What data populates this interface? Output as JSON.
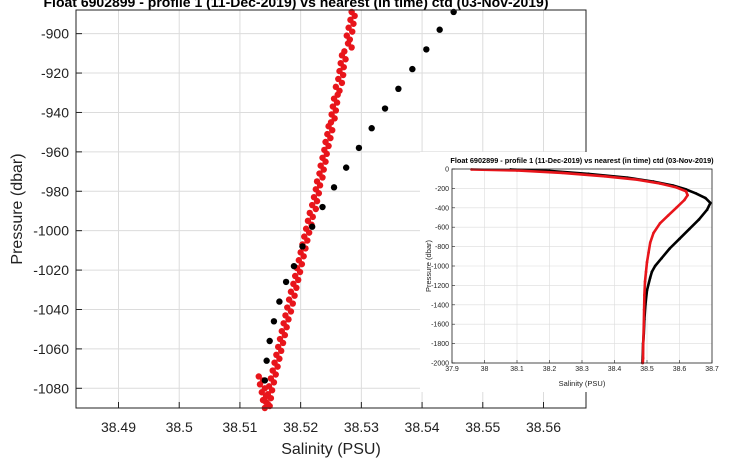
{
  "chart_data": [
    {
      "type": "scatter",
      "title": "Float 6902899 - profile 1 (11-Dec-2019) vs nearest (in time) ctd (03-Nov-2019)",
      "xlabel": "Salinity (PSU)",
      "ylabel": "Pressure (dbar)",
      "xlim": [
        38.483,
        38.567
      ],
      "ylim": [
        -1090,
        -888
      ],
      "xticks": [
        "38.49",
        "38.5",
        "38.51",
        "38.52",
        "38.53",
        "38.54",
        "38.55",
        "38.56"
      ],
      "xtick_values": [
        38.49,
        38.5,
        38.51,
        38.52,
        38.53,
        38.54,
        38.55,
        38.56
      ],
      "yticks": [
        "-900",
        "-920",
        "-940",
        "-960",
        "-980",
        "-1000",
        "-1020",
        "-1040",
        "-1060",
        "-1080"
      ],
      "ytick_values": [
        -900,
        -920,
        -940,
        -960,
        -980,
        -1000,
        -1020,
        -1040,
        -1060,
        -1080
      ],
      "grid": true,
      "series": [
        {
          "color": "#e8151b",
          "x": [
            38.5284,
            38.5289,
            38.5282,
            38.5287,
            38.5279,
            38.5285,
            38.5276,
            38.5281,
            38.5278,
            38.5284,
            38.5272,
            38.5268,
            38.5274,
            38.5266,
            38.5271,
            38.5264,
            38.527,
            38.5262,
            38.5268,
            38.5258,
            38.5264,
            38.5261,
            38.5255,
            38.526,
            38.5253,
            38.5258,
            38.5251,
            38.5256,
            38.525,
            38.5246,
            38.5252,
            38.5244,
            38.5249,
            38.5241,
            38.5246,
            38.5239,
            38.5243,
            38.5236,
            38.5241,
            38.5233,
            38.5238,
            38.5231,
            38.5236,
            38.5227,
            38.5232,
            38.5225,
            38.523,
            38.5222,
            38.5227,
            38.5219,
            38.5225,
            38.5215,
            38.522,
            38.5212,
            38.5218,
            38.5209,
            38.5214,
            38.5206,
            38.5211,
            38.5203,
            38.5208,
            38.52,
            38.5205,
            38.5197,
            38.5202,
            38.5194,
            38.5199,
            38.5191,
            38.5196,
            38.5188,
            38.5193,
            38.5184,
            38.519,
            38.5181,
            38.5187,
            38.5178,
            38.5184,
            38.5175,
            38.518,
            38.5172,
            38.5177,
            38.5169,
            38.5174,
            38.5166,
            38.5171,
            38.5163,
            38.5168,
            38.516,
            38.5165,
            38.5157,
            38.5162,
            38.5154,
            38.5159,
            38.5151,
            38.5156,
            38.5148,
            38.5153,
            38.5146,
            38.5151,
            38.5143,
            38.5149,
            38.5141,
            38.5146,
            38.5138,
            38.5143,
            38.5136,
            38.5141,
            38.5133,
            38.5138,
            38.5131
          ],
          "y": [
            -889,
            -891,
            -893,
            -895,
            -897,
            -899,
            -901,
            -903,
            -905,
            -907,
            -909,
            -911,
            -913,
            -915,
            -917,
            -919,
            -921,
            -923,
            -925,
            -927,
            -929,
            -931,
            -933,
            -935,
            -937,
            -939,
            -941,
            -943,
            -945,
            -947,
            -949,
            -951,
            -953,
            -955,
            -957,
            -959,
            -961,
            -963,
            -965,
            -967,
            -969,
            -971,
            -973,
            -975,
            -977,
            -979,
            -981,
            -983,
            -985,
            -987,
            -989,
            -991,
            -993,
            -995,
            -997,
            -999,
            -1001,
            -1003,
            -1005,
            -1007,
            -1009,
            -1011,
            -1013,
            -1015,
            -1017,
            -1019,
            -1021,
            -1023,
            -1025,
            -1027,
            -1029,
            -1031,
            -1033,
            -1035,
            -1037,
            -1039,
            -1041,
            -1043,
            -1045,
            -1047,
            -1049,
            -1051,
            -1053,
            -1055,
            -1057,
            -1059,
            -1061,
            -1063,
            -1065,
            -1067,
            -1069,
            -1071,
            -1073,
            -1075,
            -1077,
            -1079,
            -1081,
            -1083,
            -1085,
            -1087,
            -1089,
            -1090,
            -1088,
            -1086,
            -1084,
            -1082,
            -1080,
            -1078,
            -1076,
            -1074
          ]
        },
        {
          "color": "#000000",
          "x": [
            38.5452,
            38.5429,
            38.5407,
            38.5384,
            38.5361,
            38.5339,
            38.5317,
            38.5296,
            38.5275,
            38.5255,
            38.5236,
            38.5219,
            38.5203,
            38.5189,
            38.5176,
            38.5165,
            38.5156,
            38.5149,
            38.5144,
            38.5141
          ],
          "y": [
            -889,
            -898,
            -908,
            -918,
            -928,
            -938,
            -948,
            -958,
            -968,
            -978,
            -988,
            -998,
            -1008,
            -1018,
            -1026,
            -1036,
            -1046,
            -1056,
            -1066,
            -1076
          ]
        }
      ]
    },
    {
      "type": "line",
      "title": "Float 6902899 - profile 1 (11-Dec-2019) vs nearest (in time) ctd (03-Nov-2019)",
      "xlabel": "Salinity (PSU)",
      "ylabel": "Pressure (dbar)",
      "xlim": [
        37.9,
        38.7
      ],
      "ylim": [
        -2000,
        0
      ],
      "xticks": [
        "37.9",
        "38",
        "38.1",
        "38.2",
        "38.3",
        "38.4",
        "38.5",
        "38.6",
        "38.7"
      ],
      "xtick_values": [
        37.9,
        38.0,
        38.1,
        38.2,
        38.3,
        38.4,
        38.5,
        38.6,
        38.7
      ],
      "yticks": [
        "0",
        "-200",
        "-400",
        "-600",
        "-800",
        "-1000",
        "-1200",
        "-1400",
        "-1600",
        "-1800",
        "-2000"
      ],
      "ytick_values": [
        0,
        -200,
        -400,
        -600,
        -800,
        -1000,
        -1200,
        -1400,
        -1600,
        -1800,
        -2000
      ],
      "grid": true,
      "series": [
        {
          "color": "#000000",
          "x": [
            38.08,
            38.2,
            38.32,
            38.44,
            38.52,
            38.58,
            38.62,
            38.65,
            38.68,
            38.695,
            38.685,
            38.66,
            38.63,
            38.6,
            38.57,
            38.545,
            38.525,
            38.515,
            38.51,
            38.5,
            38.495,
            38.492,
            38.49,
            38.488,
            38.487,
            38.486
          ],
          "y": [
            -5,
            -20,
            -50,
            -90,
            -130,
            -170,
            -210,
            -250,
            -300,
            -350,
            -420,
            -520,
            -620,
            -720,
            -820,
            -920,
            -1000,
            -1060,
            -1120,
            -1250,
            -1400,
            -1550,
            -1700,
            -1800,
            -1900,
            -2000
          ]
        },
        {
          "color": "#e8151b",
          "x": [
            37.96,
            38.1,
            38.24,
            38.37,
            38.47,
            38.54,
            38.59,
            38.62,
            38.625,
            38.615,
            38.59,
            38.565,
            38.54,
            38.52,
            38.51,
            38.505,
            38.5,
            38.497,
            38.494,
            38.492,
            38.491,
            38.49,
            38.489,
            38.488,
            38.488,
            38.487
          ],
          "y": [
            -5,
            -15,
            -40,
            -75,
            -110,
            -150,
            -190,
            -230,
            -270,
            -320,
            -400,
            -480,
            -560,
            -660,
            -760,
            -860,
            -960,
            -1060,
            -1160,
            -1300,
            -1450,
            -1600,
            -1750,
            -1850,
            -1950,
            -2000
          ]
        }
      ]
    }
  ]
}
